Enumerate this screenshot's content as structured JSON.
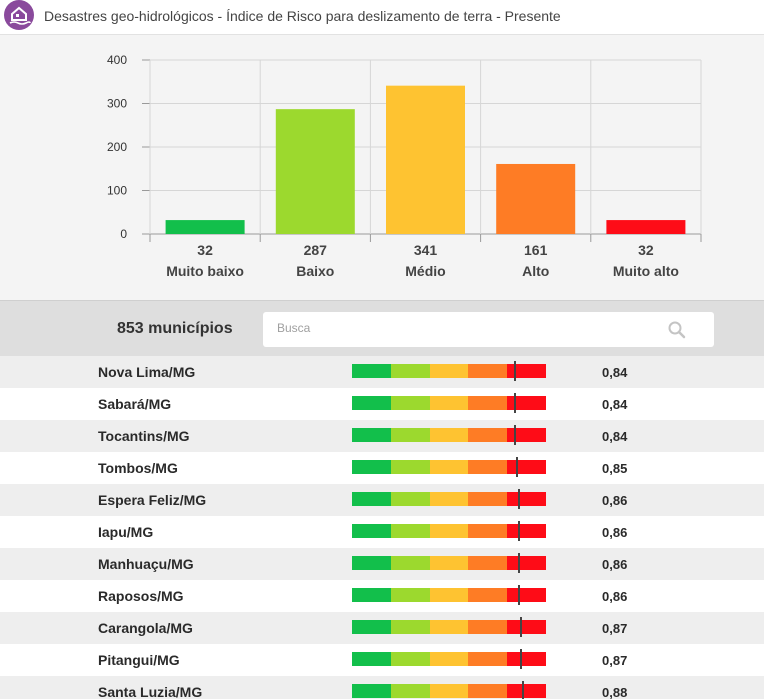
{
  "header": {
    "title": "Desastres geo-hidrológicos - Índice de Risco para deslizamento de terra - Presente"
  },
  "chart_data": {
    "type": "bar",
    "categories": [
      "Muito baixo",
      "Baixo",
      "Médio",
      "Alto",
      "Muito alto"
    ],
    "values": [
      32,
      287,
      341,
      161,
      32
    ],
    "colors": [
      "#12bf4b",
      "#9cd92e",
      "#fec331",
      "#fe7c25",
      "#fe0c17"
    ],
    "ylim": [
      0,
      400
    ],
    "yticks": [
      0,
      100,
      200,
      300,
      400
    ],
    "grid": true
  },
  "controls": {
    "count_label": "853 municípios",
    "search_placeholder": "Busca"
  },
  "risk_scale_colors": [
    "#12bf4b",
    "#9cd92e",
    "#fec331",
    "#fe7c25",
    "#fe0c17"
  ],
  "municipalities": [
    {
      "name": "Nova Lima/MG",
      "value": "0,84",
      "score": 0.84
    },
    {
      "name": "Sabará/MG",
      "value": "0,84",
      "score": 0.84
    },
    {
      "name": "Tocantins/MG",
      "value": "0,84",
      "score": 0.84
    },
    {
      "name": "Tombos/MG",
      "value": "0,85",
      "score": 0.85
    },
    {
      "name": "Espera Feliz/MG",
      "value": "0,86",
      "score": 0.86
    },
    {
      "name": "Iapu/MG",
      "value": "0,86",
      "score": 0.86
    },
    {
      "name": "Manhuaçu/MG",
      "value": "0,86",
      "score": 0.86
    },
    {
      "name": "Raposos/MG",
      "value": "0,86",
      "score": 0.86
    },
    {
      "name": "Carangola/MG",
      "value": "0,87",
      "score": 0.87
    },
    {
      "name": "Pitangui/MG",
      "value": "0,87",
      "score": 0.87
    },
    {
      "name": "Santa Luzia/MG",
      "value": "0,88",
      "score": 0.88
    }
  ]
}
